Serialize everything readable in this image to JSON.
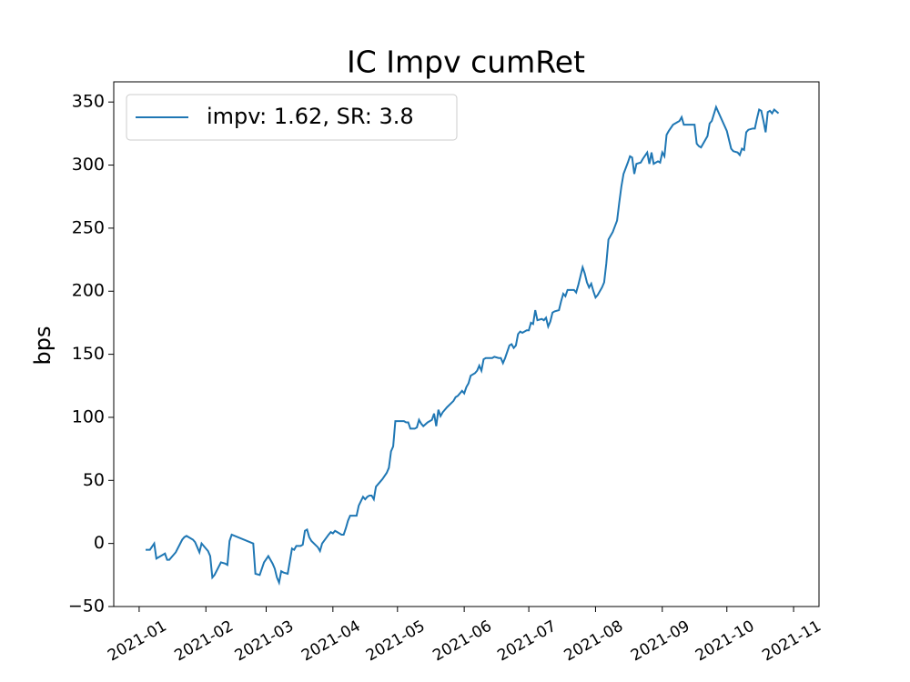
{
  "chart_data": {
    "type": "line",
    "title": "IC Impv cumRet",
    "y_label": "bps",
    "x": [
      3,
      5,
      7,
      8,
      10,
      12,
      13,
      14,
      17,
      20,
      21,
      22,
      25,
      26,
      27,
      28,
      29,
      32,
      33,
      34,
      35,
      38,
      40,
      41,
      42,
      43,
      53,
      54,
      56,
      58,
      60,
      62,
      63,
      64,
      65,
      66,
      67,
      69,
      70,
      71,
      72,
      73,
      75,
      76,
      77,
      78,
      79,
      80,
      83,
      84,
      85,
      88,
      89,
      90,
      91,
      92,
      94,
      95,
      96,
      97,
      98,
      99,
      101,
      102,
      104,
      105,
      106,
      107,
      108,
      109,
      110,
      112,
      113,
      115,
      116,
      117,
      118,
      119,
      123,
      124,
      125,
      126,
      128,
      129,
      130,
      131,
      132,
      134,
      136,
      137,
      138,
      139,
      140,
      141,
      143,
      146,
      147,
      148,
      150,
      151,
      152,
      153,
      154,
      156,
      157,
      158,
      159,
      160,
      161,
      164,
      165,
      167,
      168,
      169,
      170,
      172,
      173,
      174,
      175,
      176,
      177,
      178,
      180,
      181,
      182,
      183,
      184,
      185,
      187,
      188,
      189,
      190,
      191,
      192,
      193,
      195,
      196,
      197,
      198,
      199,
      202,
      203,
      204,
      205,
      206,
      207,
      208,
      209,
      210,
      211,
      212,
      213,
      215,
      216,
      217,
      218,
      220,
      222,
      223,
      224,
      225,
      227,
      228,
      229,
      230,
      231,
      233,
      234,
      236,
      237,
      238,
      239,
      241,
      242,
      243,
      244,
      245,
      246,
      248,
      250,
      251,
      252,
      253,
      256,
      257,
      258,
      259,
      260,
      261,
      264,
      265,
      266,
      268,
      273,
      275,
      276,
      278,
      279,
      280,
      281,
      282,
      283,
      285,
      286,
      287,
      288,
      289,
      290,
      291,
      292,
      293,
      294,
      295,
      297
    ],
    "series": [
      {
        "name": "impv: 1.62, SR: 3.8",
        "color": "#1f77b4",
        "values": [
          -5,
          -5,
          0,
          -12,
          -10,
          -8,
          -13,
          -13,
          -7,
          3,
          5,
          6,
          3,
          1,
          -3,
          -7,
          0,
          -6,
          -10,
          -27,
          -25,
          -15,
          -16,
          -17,
          2,
          7,
          0,
          -24,
          -25,
          -15,
          -10,
          -16,
          -20,
          -27,
          -31,
          -22,
          -23,
          -24,
          -14,
          -4,
          -5,
          -2,
          -2,
          -1,
          10,
          11,
          5,
          2,
          -3,
          -6,
          0,
          7,
          9,
          8,
          10,
          9,
          7,
          7,
          12,
          18,
          22,
          22,
          22,
          30,
          37,
          35,
          37,
          38,
          38,
          35,
          45,
          49,
          51,
          56,
          60,
          73,
          77,
          97,
          97,
          96,
          96,
          91,
          91,
          92,
          98,
          95,
          93,
          96,
          98,
          103,
          93,
          106,
          101,
          104,
          108,
          113,
          116,
          117,
          121,
          119,
          124,
          127,
          133,
          135,
          137,
          141,
          137,
          146,
          147,
          147,
          148,
          147,
          147,
          143,
          147,
          157,
          158,
          155,
          157,
          166,
          168,
          167,
          169,
          169,
          175,
          174,
          185,
          177,
          178,
          177,
          179,
          172,
          176,
          183,
          184,
          185,
          192,
          198,
          196,
          201,
          201,
          199,
          205,
          212,
          219,
          214,
          207,
          203,
          206,
          200,
          195,
          197,
          203,
          207,
          222,
          241,
          247,
          256,
          270,
          283,
          293,
          302,
          307,
          306,
          293,
          301,
          302,
          305,
          310,
          301,
          310,
          301,
          303,
          302,
          310,
          307,
          324,
          327,
          332,
          334,
          335,
          338,
          332,
          332,
          332,
          332,
          317,
          315,
          314,
          323,
          333,
          335,
          346,
          327,
          313,
          311,
          310,
          308,
          313,
          312,
          326,
          328,
          329,
          329,
          337,
          344,
          343,
          335,
          326,
          342,
          343,
          341,
          344,
          341
        ]
      }
    ],
    "xlim": [
      -11.8,
      315.8
    ],
    "xticks": [
      {
        "value": 0,
        "label": "2021-01"
      },
      {
        "value": 31,
        "label": "2021-02"
      },
      {
        "value": 59,
        "label": "2021-03"
      },
      {
        "value": 90,
        "label": "2021-04"
      },
      {
        "value": 120,
        "label": "2021-05"
      },
      {
        "value": 151,
        "label": "2021-06"
      },
      {
        "value": 181,
        "label": "2021-07"
      },
      {
        "value": 212,
        "label": "2021-08"
      },
      {
        "value": 243,
        "label": "2021-09"
      },
      {
        "value": 273,
        "label": "2021-10"
      },
      {
        "value": 304,
        "label": "2021-11"
      }
    ],
    "ylim": [
      -50,
      366
    ],
    "yticks": [
      {
        "value": -50,
        "label": "−50"
      },
      0,
      50,
      100,
      150,
      200,
      250,
      300,
      350
    ],
    "legend": "upper left"
  }
}
